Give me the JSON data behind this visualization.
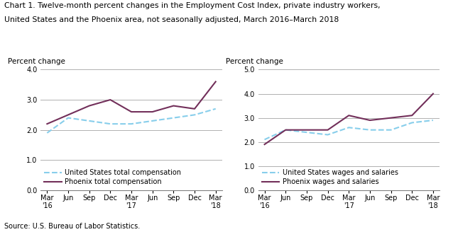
{
  "title_line1": "Chart 1. Twelve-month percent changes in the Employment Cost Index, private industry workers,",
  "title_line2": "United States and the Phoenix area, not seasonally adjusted, March 2016–March 2018",
  "source": "Source: U.S. Bureau of Labor Statistics.",
  "ylabel": "Percent change",
  "x_labels": [
    "Mar\n'16",
    "Jun",
    "Sep",
    "Dec",
    "Mar\n'17",
    "Jun",
    "Sep",
    "Dec",
    "Mar\n'18"
  ],
  "left_chart": {
    "us_total_comp": [
      1.9,
      2.4,
      2.3,
      2.2,
      2.2,
      2.3,
      2.4,
      2.5,
      2.7
    ],
    "phoenix_total_comp": [
      2.2,
      2.5,
      2.8,
      3.0,
      2.6,
      2.6,
      2.8,
      2.7,
      3.6
    ],
    "ylim": [
      0.0,
      4.0
    ],
    "yticks": [
      0.0,
      1.0,
      2.0,
      3.0,
      4.0
    ],
    "legend_us": "United States total compensation",
    "legend_phoenix": "Phoenix total compensation"
  },
  "right_chart": {
    "us_wages": [
      2.1,
      2.5,
      2.4,
      2.3,
      2.6,
      2.5,
      2.5,
      2.8,
      2.9
    ],
    "phoenix_wages": [
      1.9,
      2.5,
      2.5,
      2.5,
      3.1,
      2.9,
      3.0,
      3.1,
      4.0
    ],
    "ylim": [
      0.0,
      5.0
    ],
    "yticks": [
      0.0,
      1.0,
      2.0,
      3.0,
      4.0,
      5.0
    ],
    "legend_us": "United States wages and salaries",
    "legend_phoenix": "Phoenix wages and salaries"
  },
  "us_color": "#87CEEB",
  "phoenix_color": "#722F5A",
  "us_linestyle": "--",
  "phoenix_linestyle": "-",
  "linewidth": 1.5,
  "grid_color": "#b0b0b0",
  "bg_color": "#ffffff",
  "title_fontsize": 7.8,
  "axis_label_fontsize": 7.5,
  "tick_fontsize": 7.0,
  "legend_fontsize": 7.0
}
